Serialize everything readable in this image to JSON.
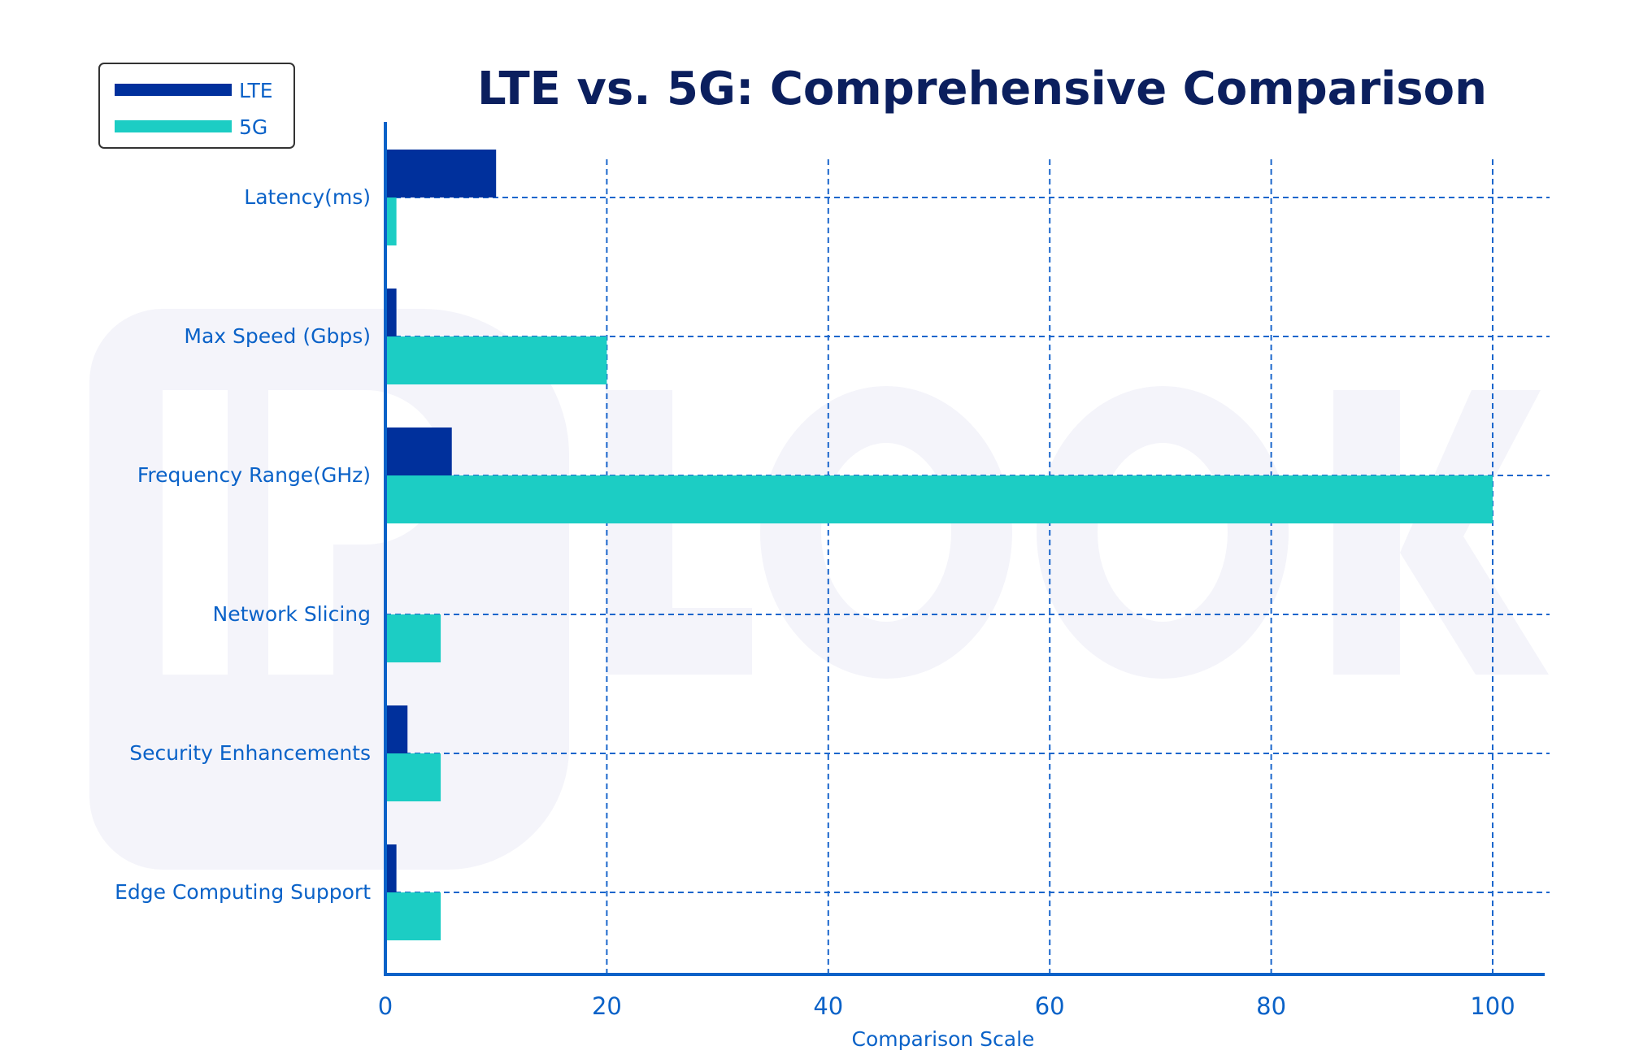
{
  "watermark": "IPLOOK",
  "chart_data": {
    "type": "bar",
    "orientation": "horizontal",
    "title": "LTE vs. 5G: Comprehensive Comparison",
    "xlabel": "Comparison Scale",
    "ylabel": "",
    "xlim": [
      0,
      104
    ],
    "xticks": [
      "0",
      "20",
      "40",
      "60",
      "80",
      "100"
    ],
    "grid": true,
    "legend_position": "top-left",
    "categories": [
      "Latency(ms)",
      "Max Speed (Gbps)",
      "Frequency Range(GHz)",
      "Network Slicing",
      "Security Enhancements",
      "Edge Computing Support"
    ],
    "series": [
      {
        "name": "LTE",
        "color": "#00309c",
        "values": [
          10,
          1,
          6,
          0,
          2,
          1
        ]
      },
      {
        "name": "5G",
        "color": "#1ccdc4",
        "values": [
          1,
          20,
          100,
          5,
          5,
          5
        ]
      }
    ],
    "axis_color": "#0a62c8",
    "grid_color": "#1a66cc"
  }
}
